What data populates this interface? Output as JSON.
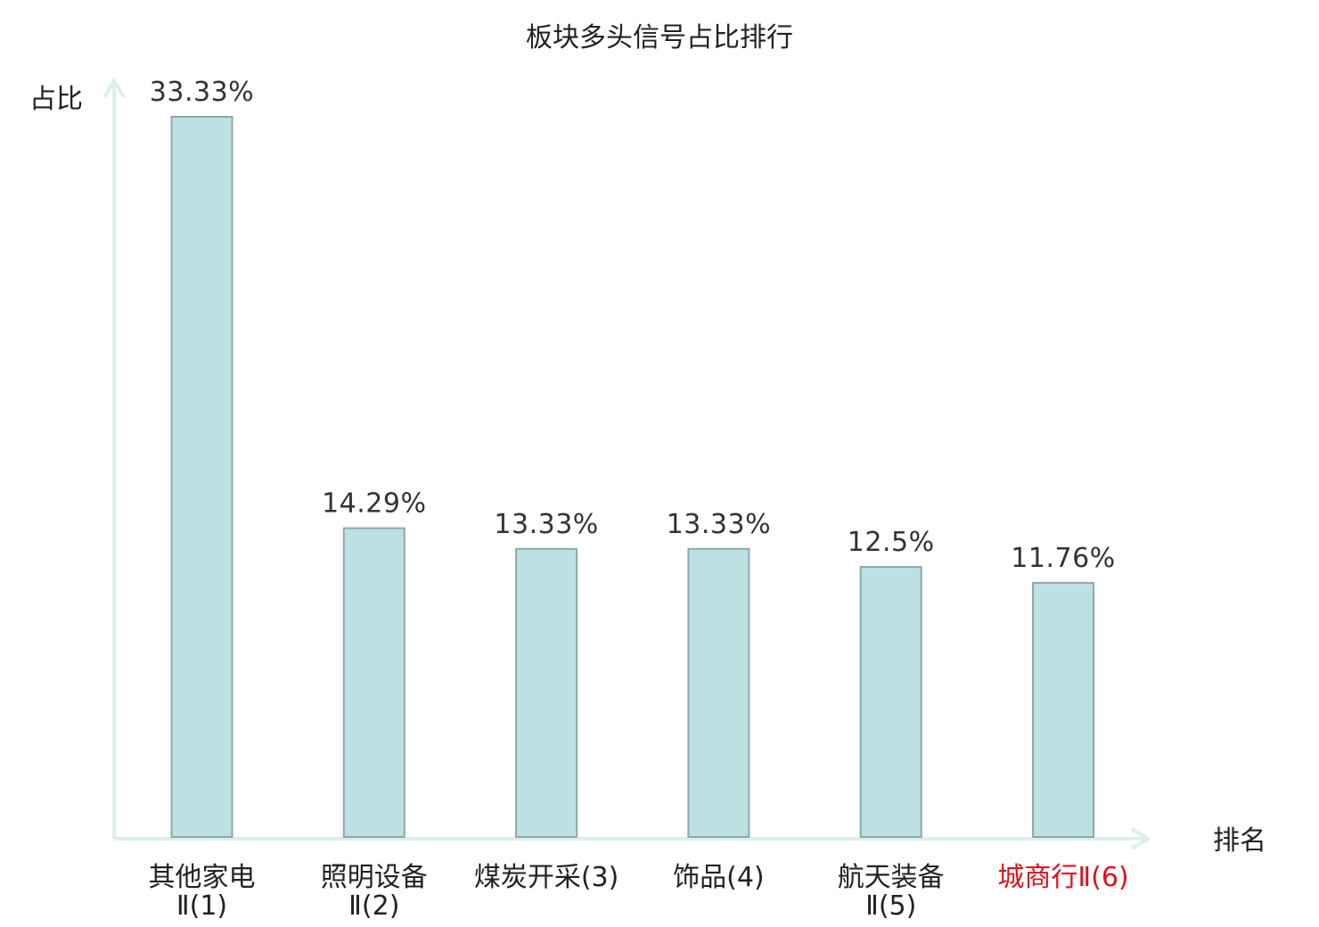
{
  "chart_data": {
    "type": "bar",
    "title": "板块多头信号占比排行",
    "xlabel": "排名",
    "ylabel": "占比",
    "categories": [
      {
        "line1": "其他家电",
        "line2": "Ⅱ(1)"
      },
      {
        "line1": "照明设备",
        "line2": "Ⅱ(2)"
      },
      {
        "line1": "煤炭开采(3)",
        "line2": ""
      },
      {
        "line1": "饰品(4)",
        "line2": ""
      },
      {
        "line1": "航天装备",
        "line2": "Ⅱ(5)"
      },
      {
        "line1": "城商行Ⅱ(6)",
        "line2": ""
      }
    ],
    "values": [
      33.33,
      14.29,
      13.33,
      13.33,
      12.5,
      11.76
    ],
    "value_labels": [
      "33.33%",
      "14.29%",
      "13.33%",
      "13.33%",
      "12.5%",
      "11.76%"
    ],
    "category_label_colors": [
      "#222222",
      "#222222",
      "#222222",
      "#222222",
      "#222222",
      "#e0101a"
    ],
    "ylim": [
      0,
      35
    ],
    "grid": false,
    "legend": "none"
  },
  "colors": {
    "bar_fill": "#bde0e3",
    "bar_stroke": "#8fa8aa",
    "axis": "#dcefed",
    "highlight": "#e0101a"
  }
}
